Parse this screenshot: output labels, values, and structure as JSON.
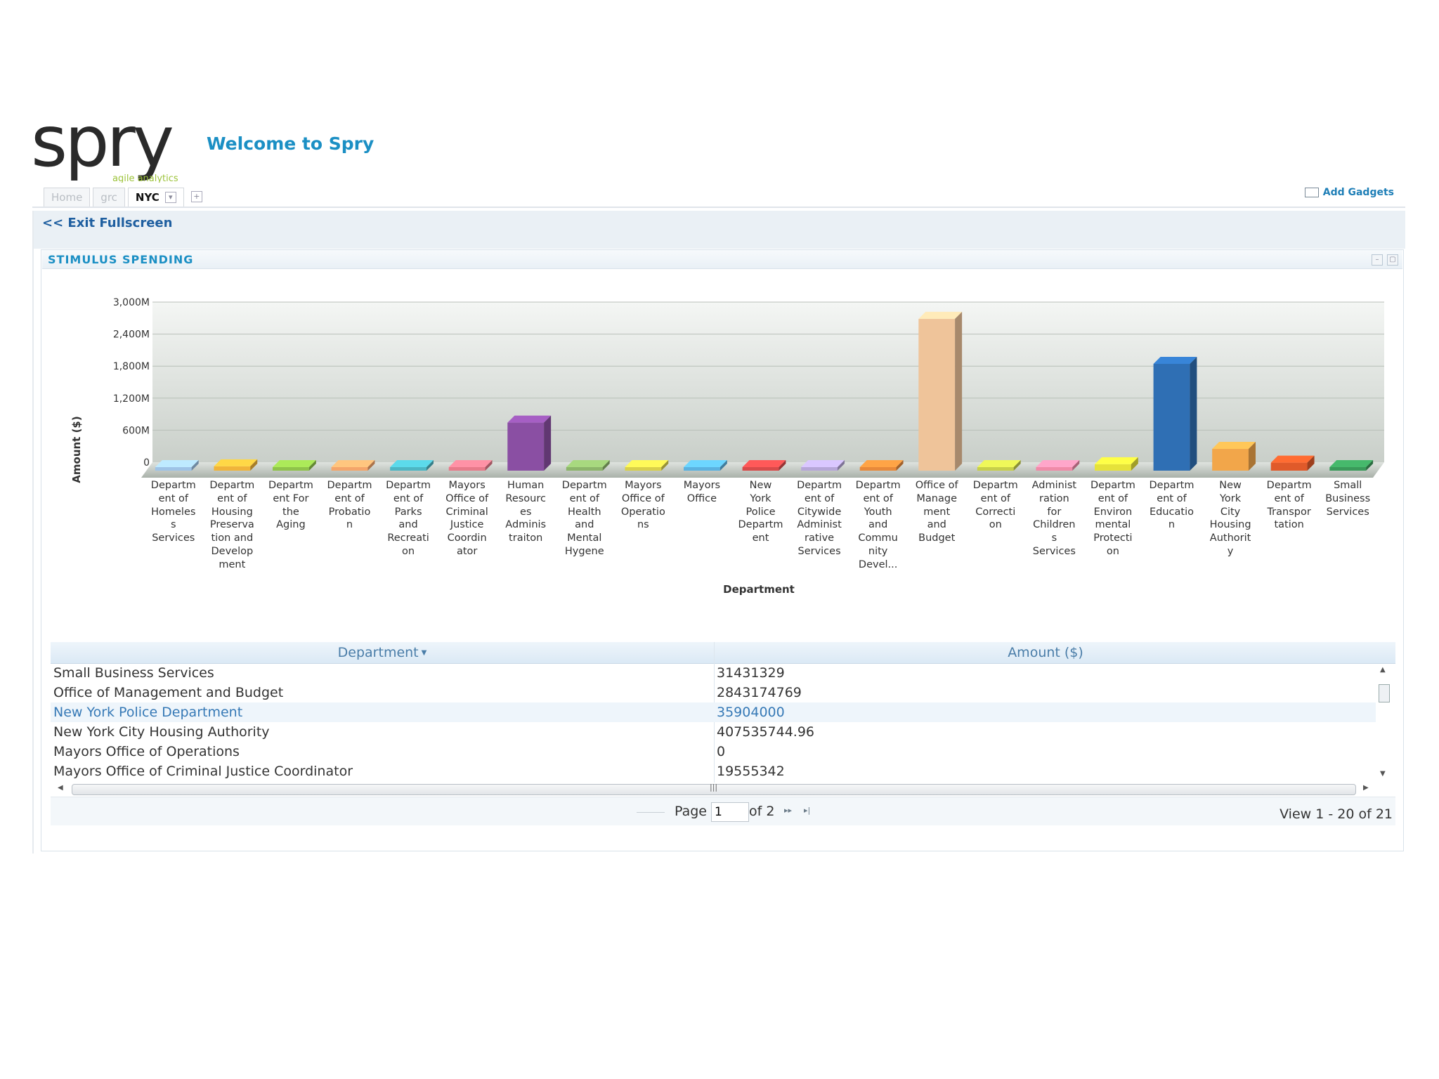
{
  "header": {
    "logo_text": "spry",
    "logo_tagline": "agile analytics",
    "welcome": "Welcome to Spry"
  },
  "tabs": [
    {
      "label": "Home",
      "active": false
    },
    {
      "label": "grc",
      "active": false
    },
    {
      "label": "NYC",
      "active": true
    }
  ],
  "toolbar": {
    "add_gadgets": "Add Gadgets",
    "exit_fullscreen": "<< Exit Fullscreen"
  },
  "panel": {
    "title": "STIMULUS SPENDING"
  },
  "chart_data": {
    "type": "bar",
    "xlabel": "Department",
    "ylabel": "Amount ($)",
    "ylim": [
      0,
      3000000000
    ],
    "yticks": [
      "0",
      "600M",
      "1,200M",
      "1,800M",
      "2,400M",
      "3,000M"
    ],
    "grid": true,
    "categories": [
      "Department of Homeless Services",
      "Department of Housing Preservation and Development",
      "Department For the Aging",
      "Department of Probation",
      "Department of Parks and Recreation",
      "Mayors Office of Criminal Justice Coordinator",
      "Human Resources Administraiton",
      "Department of Health and Mental Hygene",
      "Mayors Office of Operations",
      "Mayors Office",
      "New York Police Department",
      "Department of Citywide Administrative Services",
      "Department of Youth and Community Devel...",
      "Office of Management and Budget",
      "Department of Correction",
      "Administration for Childrens Services",
      "Department of Environmental Protection",
      "Department of Education",
      "New York City Housing Authority",
      "Department of Transportation",
      "Small Business Services"
    ],
    "category_labels": [
      "Departm\nent of\nHomeles\ns\nServices",
      "Departm\nent of\nHousing\nPreserva\ntion and\nDevelop\nment",
      "Departm\nent For\nthe\nAging",
      "Departm\nent of\nProbatio\nn",
      "Departm\nent of\nParks\nand\nRecreati\non",
      "Mayors\nOffice of\nCriminal\nJustice\nCoordin\nator",
      "Human\nResourc\nes\nAdminis\ntraiton",
      "Departm\nent of\nHealth\nand\nMental\nHygene",
      "Mayors\nOffice of\nOperatio\nns",
      "Mayors\nOffice",
      "New\nYork\nPolice\nDepartm\nent",
      "Departm\nent of\nCitywide\nAdminist\nrative\nServices",
      "Departm\nent of\nYouth\nand\nCommu\nnity\nDevel...",
      "Office of\nManage\nment\nand\nBudget",
      "Departm\nent of\nCorrecti\non",
      "Administ\nration\nfor\nChildren\ns\nServices",
      "Departm\nent of\nEnviron\nmental\nProtecti\non",
      "Departm\nent of\nEducatio\nn",
      "New\nYork\nCity\nHousing\nAuthorit\ny",
      "Departm\nent of\nTranspor\ntation",
      "Small\nBusiness\nServices"
    ],
    "values": [
      40000000,
      80000000,
      20000000,
      30000000,
      25000000,
      19555342,
      900000000,
      15000000,
      0,
      10000000,
      35904000,
      30000000,
      60000000,
      2843174769,
      20000000,
      40000000,
      120000000,
      2000000000,
      407535744.96,
      150000000,
      31431329
    ],
    "colors": [
      "#9ec3e6",
      "#f0b43a",
      "#8fc34a",
      "#f4a56a",
      "#4db6c4",
      "#e87a8a",
      "#8a4fa3",
      "#8cb56a",
      "#d9d04a",
      "#5bb2e0",
      "#d84a4a",
      "#b6a6d8",
      "#e8893a",
      "#efc49a",
      "#c7cf4a",
      "#f08aa8",
      "#e6e23a",
      "#2f6fb4",
      "#f2a64a",
      "#e05a2a",
      "#3a9a5a"
    ]
  },
  "table": {
    "columns": [
      "Department",
      "Amount ($)"
    ],
    "sort_indicator": "▼",
    "rows": [
      {
        "department": "Small Business Services",
        "amount": "31431329",
        "selected": false
      },
      {
        "department": "Office of Management and Budget",
        "amount": "2843174769",
        "selected": false
      },
      {
        "department": "New York Police Department",
        "amount": "35904000",
        "selected": true
      },
      {
        "department": "New York City Housing Authority",
        "amount": "407535744.96",
        "selected": false
      },
      {
        "department": "Mayors Office of Operations",
        "amount": "0",
        "selected": false
      },
      {
        "department": "Mayors Office of Criminal Justice Coordinator",
        "amount": "19555342",
        "selected": false
      }
    ]
  },
  "pager": {
    "page_label": "Page",
    "page_value": "1",
    "of_label": "of 2",
    "view_count": "View 1 - 20 of 21"
  }
}
